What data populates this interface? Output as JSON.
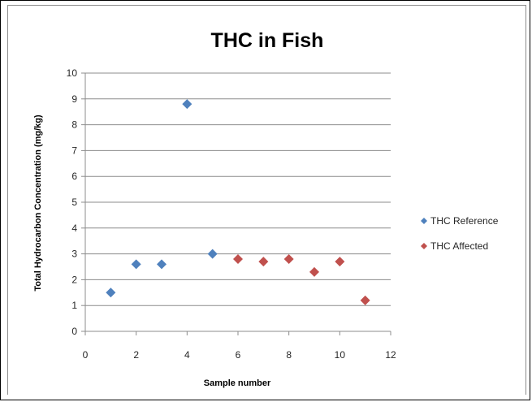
{
  "chart_data": {
    "type": "scatter",
    "title": "THC in Fish",
    "xlabel": "Sample number",
    "ylabel": "Total Hydrocarbon Concentration (mg/kg)",
    "xlim": [
      0,
      12
    ],
    "ylim": [
      0,
      10
    ],
    "x_ticks": [
      0,
      2,
      4,
      6,
      8,
      10,
      12
    ],
    "y_ticks": [
      0,
      1,
      2,
      3,
      4,
      5,
      6,
      7,
      8,
      9,
      10
    ],
    "grid": "horizontal",
    "legend_position": "right",
    "marker": "diamond",
    "series": [
      {
        "name": "THC Reference",
        "color": "#4f81bd",
        "points": [
          {
            "x": 1,
            "y": 1.5
          },
          {
            "x": 2,
            "y": 2.6
          },
          {
            "x": 3,
            "y": 2.6
          },
          {
            "x": 4,
            "y": 8.8
          },
          {
            "x": 5,
            "y": 3.0
          }
        ]
      },
      {
        "name": "THC Affected",
        "color": "#c0504d",
        "points": [
          {
            "x": 6,
            "y": 2.8
          },
          {
            "x": 7,
            "y": 2.7
          },
          {
            "x": 8,
            "y": 2.8
          },
          {
            "x": 9,
            "y": 2.3
          },
          {
            "x": 10,
            "y": 2.7
          },
          {
            "x": 11,
            "y": 1.2
          }
        ]
      }
    ]
  }
}
